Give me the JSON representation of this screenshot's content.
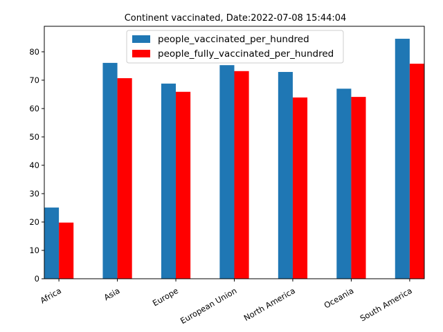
{
  "chart_data": {
    "type": "bar",
    "title": "Continent vaccinated, Date:2022-07-08 15:44:04",
    "xlabel": "",
    "ylabel": "",
    "categories": [
      "Africa",
      "Asia",
      "Europe",
      "European Union",
      "North America",
      "Oceania",
      "South America"
    ],
    "series": [
      {
        "name": "people_vaccinated_per_hundred",
        "color": "#1f77b4",
        "values": [
          25.1,
          76.1,
          68.8,
          75.3,
          72.9,
          67.0,
          84.6
        ]
      },
      {
        "name": "people_fully_vaccinated_per_hundred",
        "color": "#ff0000",
        "values": [
          19.8,
          70.7,
          65.9,
          73.2,
          63.9,
          64.1,
          75.8
        ]
      }
    ],
    "ylim": [
      0,
      89
    ],
    "yticks": [
      0,
      10,
      20,
      30,
      40,
      50,
      60,
      70,
      80
    ],
    "grid": false,
    "legend_position": "top-center"
  }
}
